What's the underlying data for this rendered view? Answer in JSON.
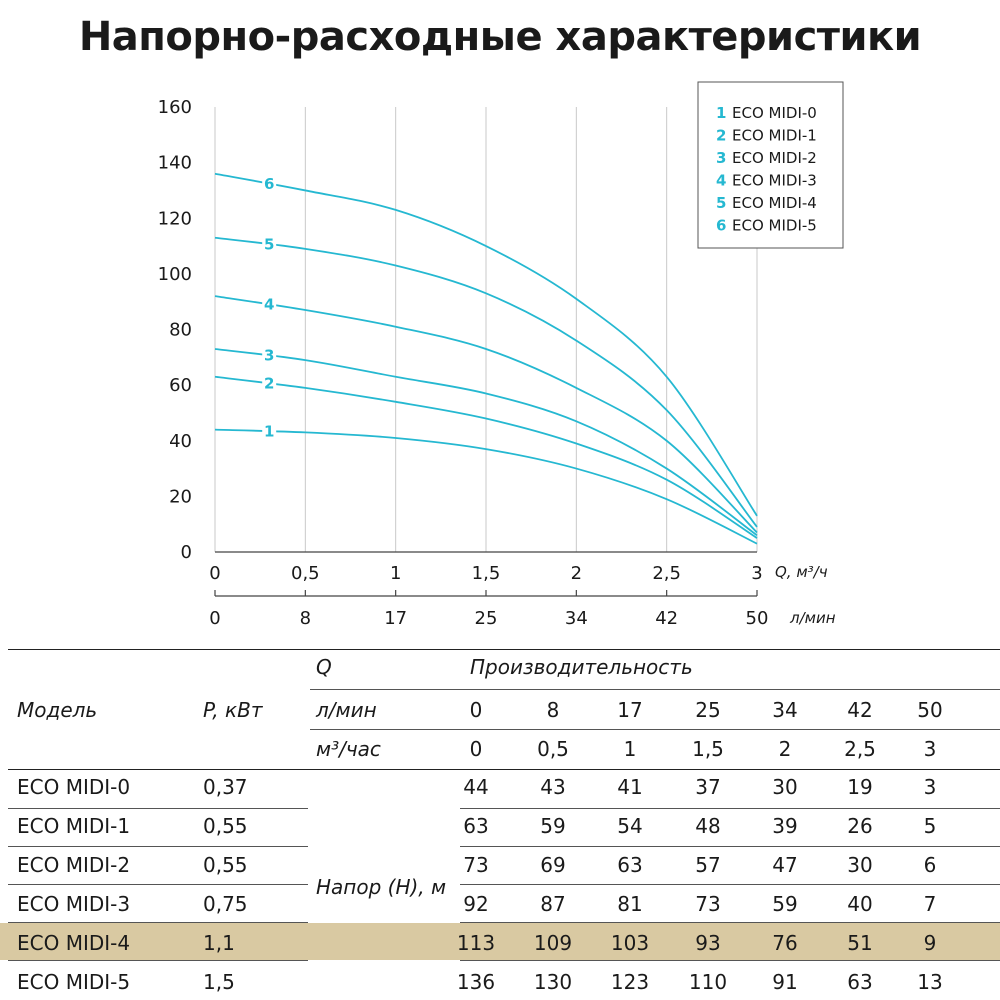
{
  "title": "Напорно-расходные характеристики",
  "colors": {
    "curve": "#25b8d1",
    "grid": "#c9c9c9",
    "highlight": "#d9c9a2"
  },
  "chart_data": {
    "type": "line",
    "ylim": [
      0,
      160
    ],
    "y_ticks": [
      "0",
      "20",
      "40",
      "60",
      "80",
      "100",
      "120",
      "140",
      "160"
    ],
    "x": [
      0,
      0.5,
      1,
      1.5,
      2,
      2.5,
      3
    ],
    "x_ticks_m3h": [
      "0",
      "0,5",
      "1",
      "1,5",
      "2",
      "2,5",
      "3"
    ],
    "x_ticks_lmin": [
      "0",
      "8",
      "17",
      "25",
      "34",
      "42",
      "50"
    ],
    "x_unit_m3h": "Q, м³/ч",
    "x_unit_lmin": "л/мин",
    "grid": true,
    "legend_position": "top-right",
    "series": [
      {
        "name": "ECO MIDI-0",
        "label": "1",
        "values": [
          44,
          43,
          41,
          37,
          30,
          19,
          3
        ]
      },
      {
        "name": "ECO MIDI-1",
        "label": "2",
        "values": [
          63,
          59,
          54,
          48,
          39,
          26,
          5
        ]
      },
      {
        "name": "ECO MIDI-2",
        "label": "3",
        "values": [
          73,
          69,
          63,
          57,
          47,
          30,
          6
        ]
      },
      {
        "name": "ECO MIDI-3",
        "label": "4",
        "values": [
          92,
          87,
          81,
          73,
          59,
          40,
          7
        ]
      },
      {
        "name": "ECO MIDI-4",
        "label": "5",
        "values": [
          113,
          109,
          103,
          93,
          76,
          51,
          9
        ]
      },
      {
        "name": "ECO MIDI-5",
        "label": "6",
        "values": [
          136,
          130,
          123,
          110,
          91,
          63,
          13
        ]
      }
    ]
  },
  "table": {
    "q_label": "Q",
    "perf_label": "Производительность",
    "model_header": "Модель",
    "power_header": "P, кВт",
    "lmin_label": "л/мин",
    "m3h_label": "м³/час",
    "head_label": "Напор (Н), м",
    "lmin_values": [
      "0",
      "8",
      "17",
      "25",
      "34",
      "42",
      "50"
    ],
    "m3h_values": [
      "0",
      "0,5",
      "1",
      "1,5",
      "2",
      "2,5",
      "3"
    ],
    "rows": [
      {
        "model": "ECO MIDI-0",
        "power": "0,37",
        "values": [
          "44",
          "43",
          "41",
          "37",
          "30",
          "19",
          "3"
        ]
      },
      {
        "model": "ECO MIDI-1",
        "power": "0,55",
        "values": [
          "63",
          "59",
          "54",
          "48",
          "39",
          "26",
          "5"
        ]
      },
      {
        "model": "ECO MIDI-2",
        "power": "0,55",
        "values": [
          "73",
          "69",
          "63",
          "57",
          "47",
          "30",
          "6"
        ],
        "highlighted": true
      },
      {
        "model": "ECO MIDI-3",
        "power": "0,75",
        "values": [
          "92",
          "87",
          "81",
          "73",
          "59",
          "40",
          "7"
        ]
      },
      {
        "model": "ECO MIDI-4",
        "power": "1,1",
        "values": [
          "113",
          "109",
          "103",
          "93",
          "76",
          "51",
          "9"
        ]
      },
      {
        "model": "ECO MIDI-5",
        "power": "1,5",
        "values": [
          "136",
          "130",
          "123",
          "110",
          "91",
          "63",
          "13"
        ]
      }
    ]
  }
}
